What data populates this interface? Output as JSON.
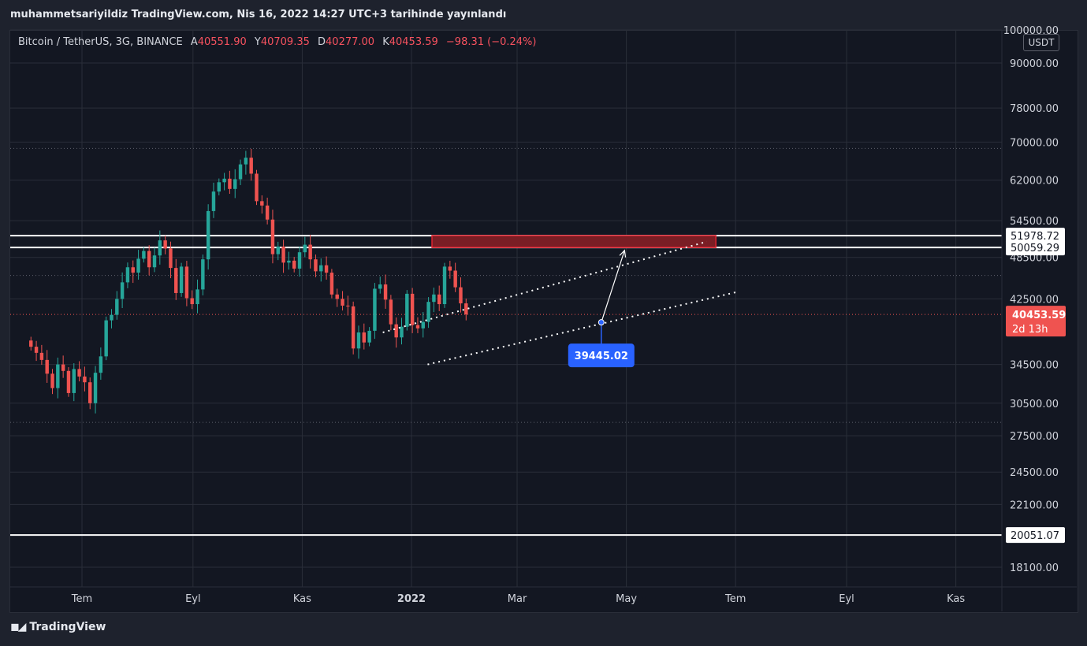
{
  "header": {
    "published_text": "muhammetsariyildiz TradingView.com, Nis 16, 2022 14:27 UTC+3 tarihinde yayınlandı"
  },
  "legend": {
    "symbol": "Bitcoin / TetherUS, 3G, BINANCE",
    "open_label": "A",
    "open": "40551.90",
    "high_label": "Y",
    "high": "40709.35",
    "low_label": "D",
    "low": "40277.00",
    "close_label": "K",
    "close": "40453.59",
    "change": "−98.31 (−0.24%)"
  },
  "price_scale": {
    "currency": "USDT"
  },
  "footer": {
    "brand": "TradingView",
    "logo_icon": "tradingview-logo-icon"
  },
  "colors": {
    "background": "#131722",
    "frame": "#1e222d",
    "up": "#26a69a",
    "down": "#ef5350",
    "grid": "#2a2e39",
    "text": "#d1d4dc",
    "zone_fill": "#7a1e25",
    "zone_border": "#e0222f",
    "blue_label": "#2962ff"
  },
  "chart_data": {
    "type": "candlestick",
    "title": "Bitcoin / TetherUS, 3G, BINANCE",
    "scale": "log",
    "ylim": [
      17500,
      100000
    ],
    "y_ticks": [
      100000,
      90000,
      78000,
      70000,
      62000,
      54500,
      48500,
      42500,
      34500,
      30500,
      27500,
      24500,
      22100,
      18100
    ],
    "y_tick_labels": [
      "100000.00",
      "90000.00",
      "78000.00",
      "70000.00",
      "62000.00",
      "54500.00",
      "48500.00",
      "42500.00",
      "34500.00",
      "30500.00",
      "27500.00",
      "24500.00",
      "22100.00",
      "18100.00"
    ],
    "x_labels": [
      "Tem",
      "Eyl",
      "Kas",
      "2022",
      "Mar",
      "May",
      "Tem",
      "Eyl",
      "Kas"
    ],
    "x_label_dates": [
      "2021-07-01",
      "2021-09-01",
      "2021-11-01",
      "2022-01-01",
      "2022-03-01",
      "2022-05-01",
      "2022-07-01",
      "2022-09-01",
      "2022-11-01"
    ],
    "candles_start": "2021-06-01",
    "candle_days": 3,
    "close_path": [
      36500,
      35800,
      35000,
      33500,
      32000,
      34500,
      33800,
      31500,
      34000,
      33200,
      32600,
      30500,
      33600,
      35400,
      39700,
      40400,
      42500,
      44800,
      47000,
      46200,
      48300,
      49500,
      47000,
      48800,
      51200,
      49900,
      46900,
      43300,
      47100,
      42600,
      41800,
      43800,
      48200,
      56200,
      59800,
      61600,
      62300,
      60300,
      62200,
      65200,
      66600,
      63300,
      58000,
      57200,
      54700,
      49000,
      50200,
      47700,
      48000,
      46800,
      49300,
      50500,
      48200,
      46400,
      47300,
      46200,
      43100,
      42500,
      41600,
      41500,
      36300,
      38200,
      37000,
      38400,
      43900,
      44500,
      42400,
      39200,
      37600,
      38900,
      43200,
      39100,
      38700,
      39500,
      42100,
      43100,
      41800,
      47100,
      46500,
      44100,
      41900,
      40450
    ],
    "last_price": "40453.59",
    "countdown": "2d 13h",
    "horizontal_lines": [
      {
        "price": 51978.72,
        "label": "51978.72"
      },
      {
        "price": 50059.29,
        "label": "50059.29"
      },
      {
        "price": 20051.07,
        "label": "20051.07"
      }
    ],
    "dotted_levels": [
      68600,
      45800,
      28700
    ],
    "resistance_zone": {
      "from": "2022-01-01",
      "to": "2022-06-20",
      "low": 50059.29,
      "high": 51978.72
    },
    "channel_upper": {
      "from": [
        "2021-12-16",
        38200
      ],
      "to": [
        "2022-06-15",
        51000
      ]
    },
    "channel_lower": {
      "from": [
        "2022-01-10",
        34500
      ],
      "to": [
        "2022-07-01",
        43400
      ]
    },
    "projection": {
      "from": [
        "2022-04-17",
        39445.02
      ],
      "to": [
        "2022-04-30",
        49600
      ]
    },
    "marker": {
      "date": "2022-04-17",
      "price": 39445.02,
      "label": "39445.02"
    }
  }
}
